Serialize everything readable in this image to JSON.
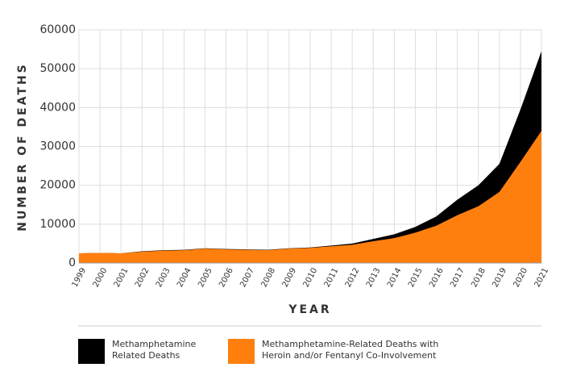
{
  "chart_data": {
    "type": "area",
    "x_label": "YEAR",
    "y_label": "NUMBER OF DEATHS",
    "categories": [
      "1999",
      "2000",
      "2001",
      "2002",
      "2003",
      "2004",
      "2005",
      "2006",
      "2007",
      "2008",
      "2009",
      "2010",
      "2011",
      "2012",
      "2013",
      "2014",
      "2015",
      "2016",
      "2017",
      "2018",
      "2019",
      "2020",
      "2021"
    ],
    "series": [
      {
        "name": "Methamphetamine Related Deaths",
        "color": "#000000",
        "values": [
          2500,
          2600,
          2500,
          3000,
          3300,
          3400,
          3800,
          3600,
          3500,
          3400,
          3800,
          4000,
          4500,
          5000,
          6200,
          7400,
          9300,
          12000,
          16300,
          20000,
          25500,
          39500,
          54500
        ]
      },
      {
        "name": "Methamphetamine-Related Deaths with Heroin and/or Fentanyl Co-Involvement",
        "color": "#ff7f0e",
        "values": [
          2500,
          2600,
          2500,
          2900,
          3200,
          3300,
          3700,
          3500,
          3400,
          3300,
          3700,
          3900,
          4300,
          4700,
          5600,
          6400,
          7800,
          9600,
          12300,
          14600,
          18300,
          26000,
          34000
        ]
      }
    ],
    "ylim": [
      0,
      60000
    ],
    "yticks": [
      0,
      10000,
      20000,
      30000,
      40000,
      50000,
      60000
    ],
    "grid": true
  }
}
